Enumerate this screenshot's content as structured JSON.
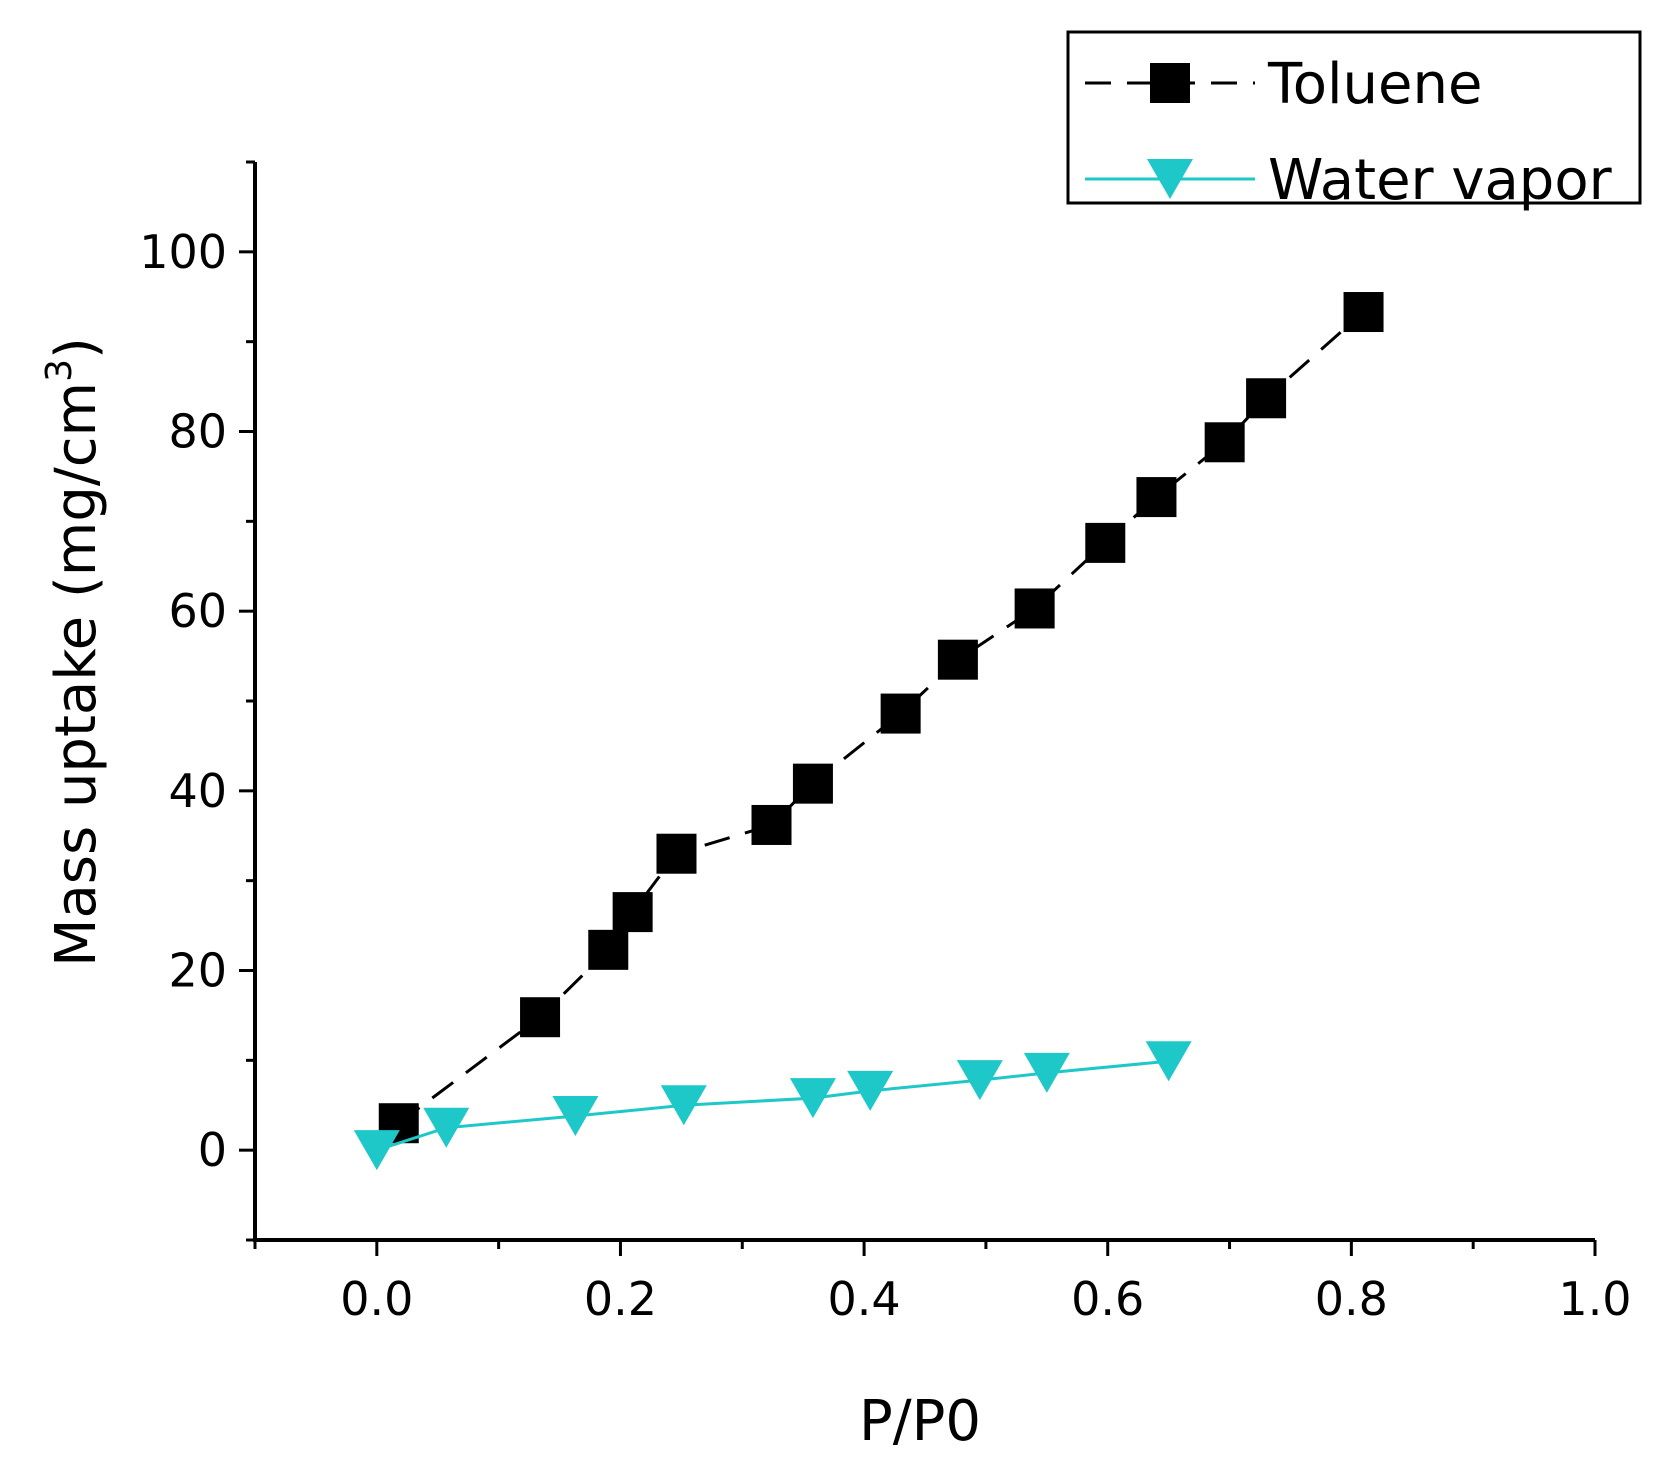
{
  "chart_data": {
    "type": "scatter",
    "title": "",
    "xlabel": "P/P0",
    "ylabel_prefix": "Mass uptake (mg/cm",
    "ylabel_sup": "3",
    "ylabel_suffix": ")",
    "xlim": [
      -0.1,
      1.0
    ],
    "ylim": [
      -10,
      110
    ],
    "x_ticks": [
      0.0,
      0.2,
      0.4,
      0.6,
      0.8,
      1.0
    ],
    "x_tick_labels": [
      "0.0",
      "0.2",
      "0.4",
      "0.6",
      "0.8",
      "1.0"
    ],
    "y_ticks": [
      0,
      20,
      40,
      60,
      80,
      100
    ],
    "y_tick_labels": [
      "0",
      "20",
      "40",
      "60",
      "80",
      "100"
    ],
    "grid": false,
    "legend_position": "top-right",
    "series": [
      {
        "name": "Toluene",
        "color": "#000000",
        "line": "dashed",
        "marker": "square",
        "x": [
          0.018,
          0.134,
          0.19,
          0.21,
          0.246,
          0.324,
          0.358,
          0.43,
          0.477,
          0.54,
          0.598,
          0.64,
          0.696,
          0.73,
          0.81
        ],
        "y": [
          3.0,
          14.8,
          22.3,
          26.5,
          33.0,
          36.2,
          40.8,
          48.6,
          54.6,
          60.3,
          67.6,
          72.7,
          78.8,
          83.7,
          93.3
        ]
      },
      {
        "name": "Water vapor",
        "color": "#1ec8c8",
        "line": "solid",
        "marker": "triangle-down",
        "x": [
          0.0,
          0.057,
          0.163,
          0.252,
          0.358,
          0.405,
          0.495,
          0.55,
          0.65
        ],
        "y": [
          0.0,
          2.5,
          3.8,
          5.0,
          5.8,
          6.6,
          7.8,
          8.6,
          9.9
        ]
      }
    ]
  }
}
